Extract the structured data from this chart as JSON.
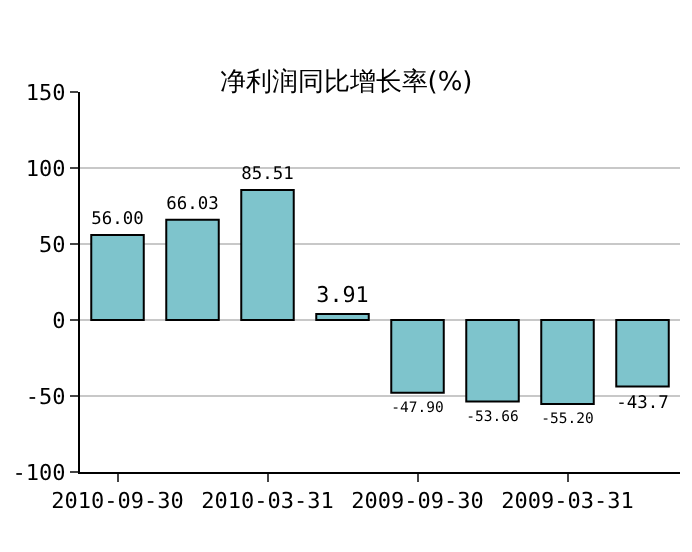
{
  "chart_data": {
    "type": "bar",
    "title": "净利润同比增长率(%)",
    "categories": [
      "2010-09-30",
      null,
      "2010-03-31",
      null,
      "2009-09-30",
      null,
      "2009-03-31",
      null
    ],
    "values": [
      56.0,
      66.03,
      85.51,
      3.91,
      -47.9,
      -53.66,
      -55.2,
      -43.7
    ],
    "value_labels": [
      "56.00",
      "66.03",
      "85.51",
      "3.91",
      "-47.90",
      "-53.66",
      "-55.20",
      "-43.7"
    ],
    "color": "#7ec4cc",
    "ylim": [
      -100,
      150
    ],
    "yticks": [
      -100,
      -50,
      0,
      50,
      100,
      150
    ],
    "grid": "y"
  }
}
